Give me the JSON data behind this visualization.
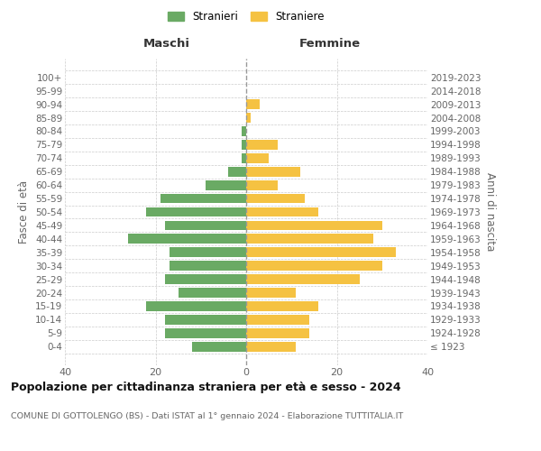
{
  "age_groups": [
    "100+",
    "95-99",
    "90-94",
    "85-89",
    "80-84",
    "75-79",
    "70-74",
    "65-69",
    "60-64",
    "55-59",
    "50-54",
    "45-49",
    "40-44",
    "35-39",
    "30-34",
    "25-29",
    "20-24",
    "15-19",
    "10-14",
    "5-9",
    "0-4"
  ],
  "birth_years": [
    "≤ 1923",
    "1924-1928",
    "1929-1933",
    "1934-1938",
    "1939-1943",
    "1944-1948",
    "1949-1953",
    "1954-1958",
    "1959-1963",
    "1964-1968",
    "1969-1973",
    "1974-1978",
    "1979-1983",
    "1984-1988",
    "1989-1993",
    "1994-1998",
    "1999-2003",
    "2004-2008",
    "2009-2013",
    "2014-2018",
    "2019-2023"
  ],
  "males": [
    0,
    0,
    0,
    0,
    1,
    1,
    1,
    4,
    9,
    19,
    22,
    18,
    26,
    17,
    17,
    18,
    15,
    22,
    18,
    18,
    12
  ],
  "females": [
    0,
    0,
    3,
    1,
    0,
    7,
    5,
    12,
    7,
    13,
    16,
    30,
    28,
    33,
    30,
    25,
    11,
    16,
    14,
    14,
    11
  ],
  "male_color": "#6aaa64",
  "female_color": "#f5c242",
  "title": "Popolazione per cittadinanza straniera per età e sesso - 2024",
  "subtitle": "COMUNE DI GOTTOLENGO (BS) - Dati ISTAT al 1° gennaio 2024 - Elaborazione TUTTITALIA.IT",
  "header_left": "Maschi",
  "header_right": "Femmine",
  "ylabel_left": "Fasce di età",
  "ylabel_right": "Anni di nascita",
  "legend_male": "Stranieri",
  "legend_female": "Straniere",
  "xlim": 40,
  "background_color": "#ffffff",
  "grid_color": "#cccccc"
}
